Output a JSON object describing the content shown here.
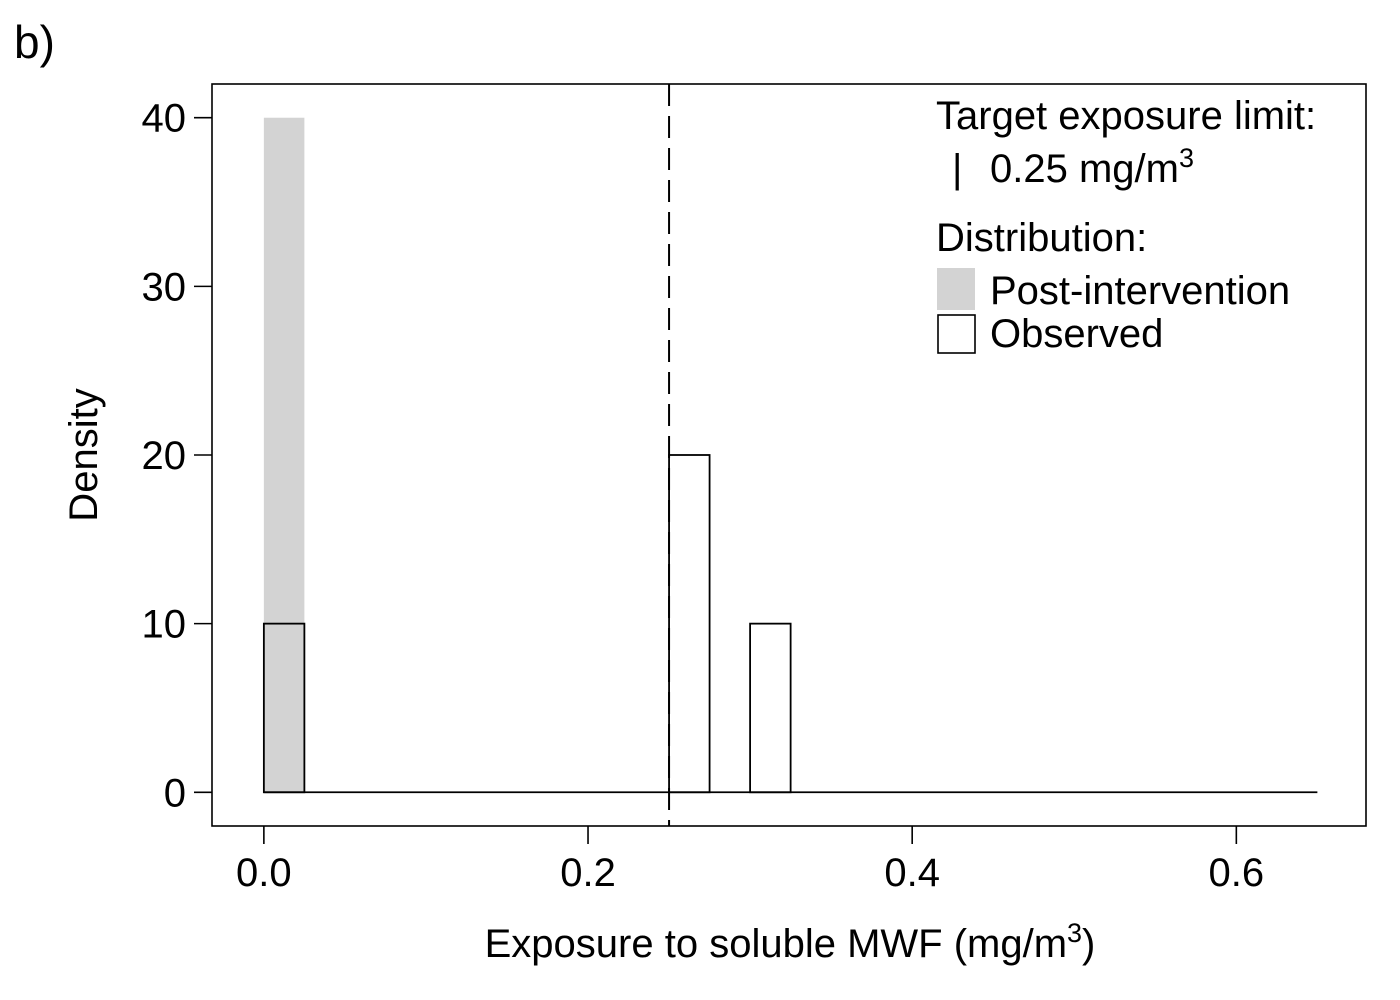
{
  "panel_label": "b)",
  "chart_data": {
    "type": "bar",
    "xlabel": "Exposure to soluble MWF (mg/m",
    "xlabel_sup": "3",
    "xlabel_tail": ")",
    "ylabel": "Density",
    "xlim": [
      -0.032,
      0.68
    ],
    "ylim": [
      -2,
      42
    ],
    "xticks": [
      0.0,
      0.2,
      0.4,
      0.6
    ],
    "xtick_labels": [
      "0.0",
      "0.2",
      "0.4",
      "0.6"
    ],
    "yticks": [
      0,
      10,
      20,
      30,
      40
    ],
    "ytick_labels": [
      "0",
      "10",
      "20",
      "30",
      "40"
    ],
    "bin_width": 0.025,
    "baseline_range": [
      0.0,
      0.65
    ],
    "series": [
      {
        "name": "Post-intervention",
        "style": "filled",
        "color": "#d3d3d3",
        "bins": [
          {
            "x0": 0.0,
            "x1": 0.025,
            "density": 40
          }
        ]
      },
      {
        "name": "Observed",
        "style": "outline",
        "color": "#000000",
        "bins": [
          {
            "x0": 0.0,
            "x1": 0.025,
            "density": 10
          },
          {
            "x0": 0.25,
            "x1": 0.275,
            "density": 20
          },
          {
            "x0": 0.3,
            "x1": 0.325,
            "density": 10
          }
        ]
      }
    ],
    "reference_line": {
      "x": 0.25,
      "style": "dashed"
    },
    "legend": {
      "position": "top-right",
      "title_limit": "Target exposure limit:",
      "limit_symbol": "|",
      "limit_label": "0.25 mg/m",
      "limit_label_sup": "3",
      "title_distribution": "Distribution:",
      "entries": [
        "Post-intervention",
        "Observed"
      ]
    },
    "grid": false
  }
}
